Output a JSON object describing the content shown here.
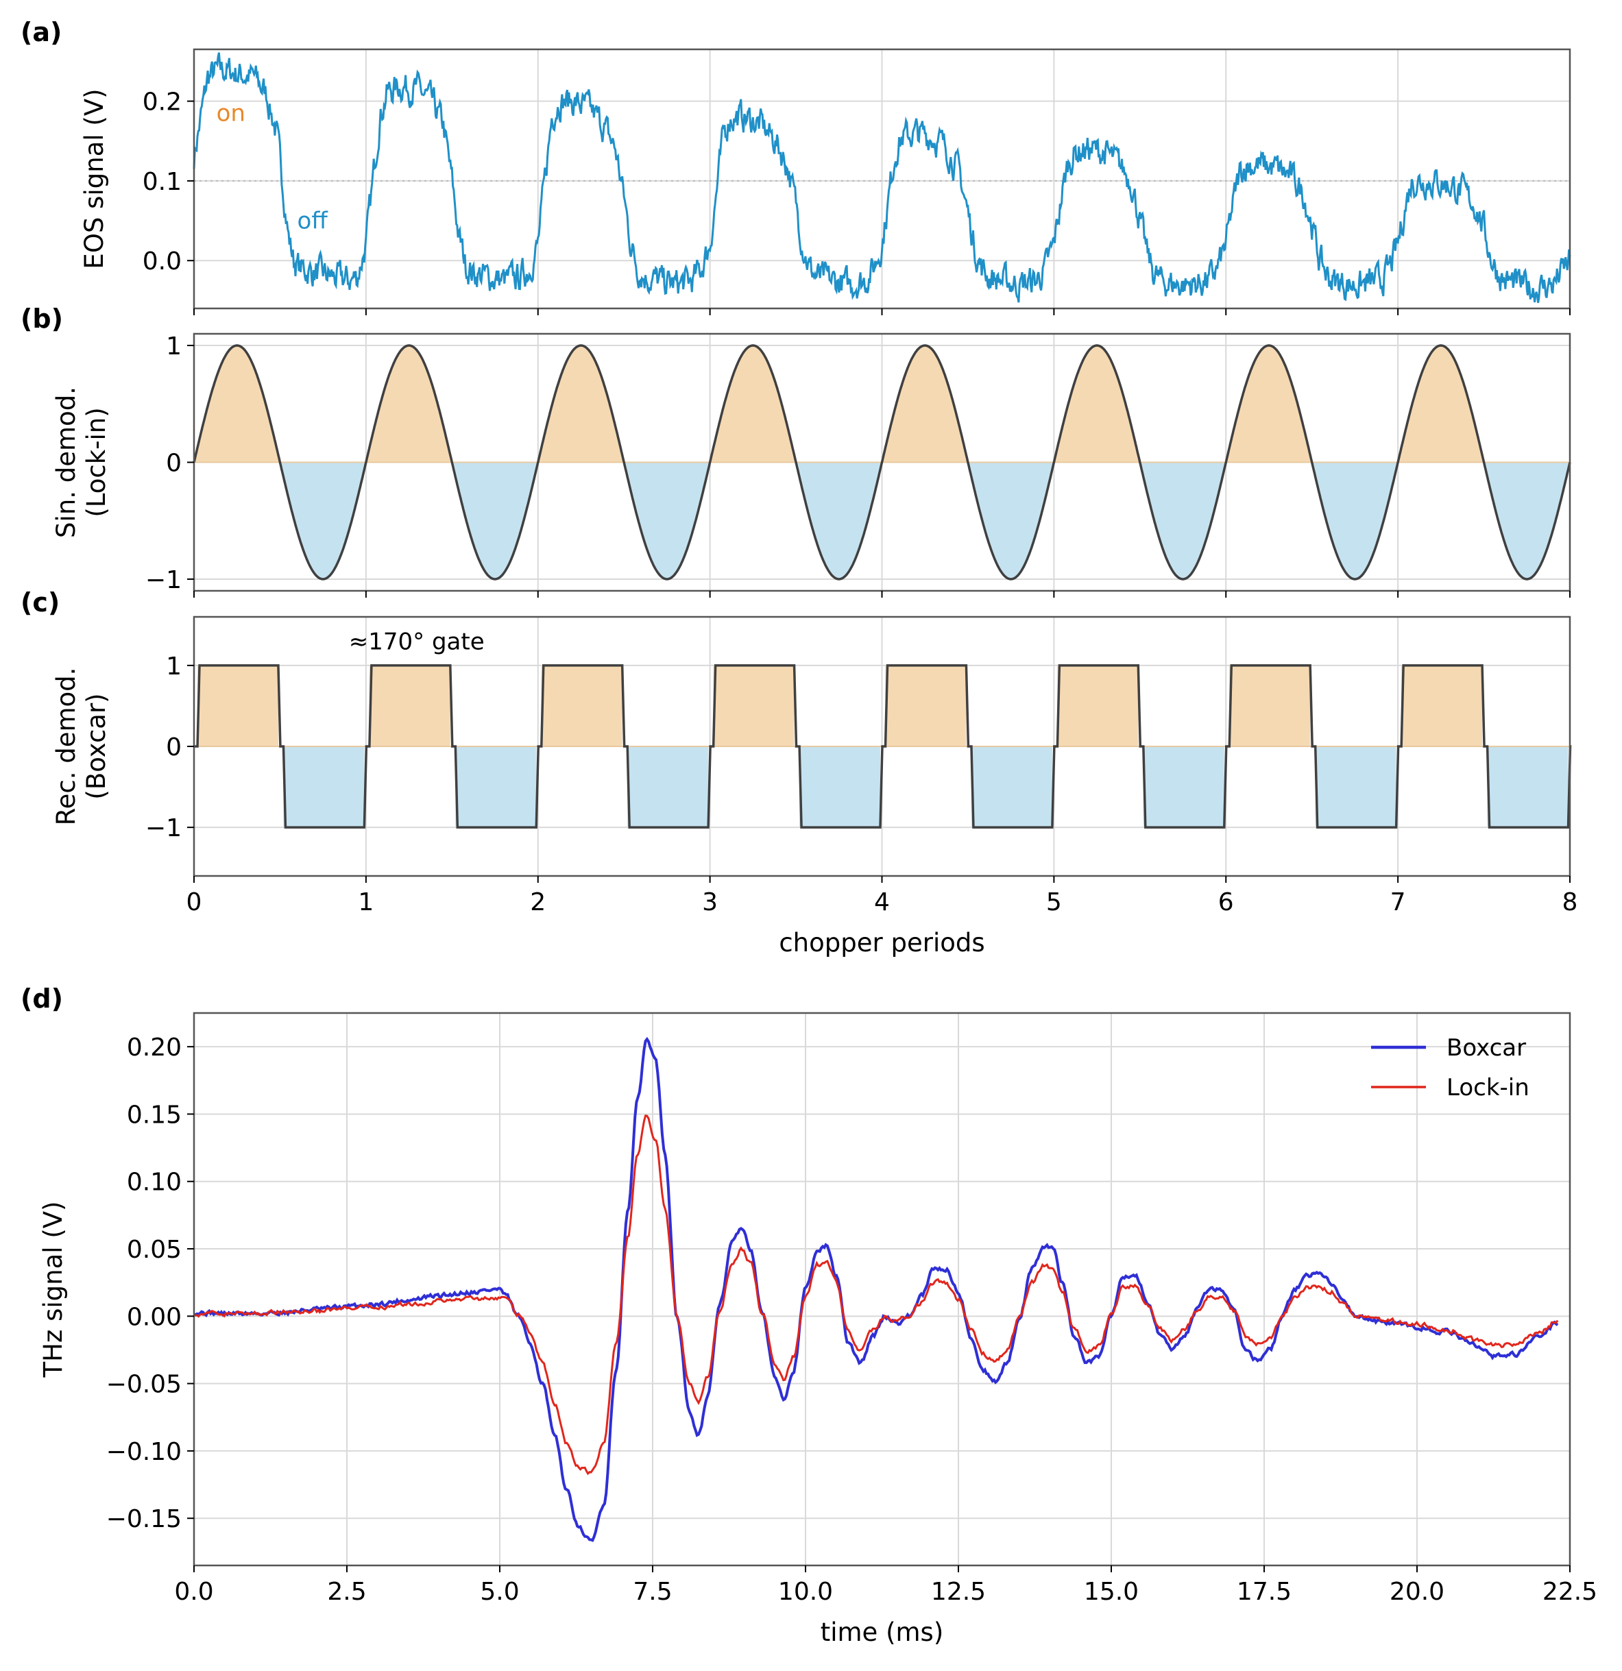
{
  "colors": {
    "eos": "#1f90c8",
    "on_fill": "#f5d9b3",
    "on_text": "#e8892b",
    "off_fill": "#c5e2f0",
    "demod_line": "#404040",
    "boxcar": "#2f2fd6",
    "lockin": "#e1261c",
    "grid": "#d9d9d9",
    "axis": "#555555"
  },
  "chart_data": [
    {
      "id": "a",
      "panel_label": "(a)",
      "type": "line",
      "ylabel": "EOS signal (V)",
      "xlim": [
        0,
        8
      ],
      "ylim": [
        -0.06,
        0.265
      ],
      "xticks": [
        0,
        1,
        2,
        3,
        4,
        5,
        6,
        7,
        8
      ],
      "yticks": [
        0.0,
        0.1,
        0.2
      ],
      "ytick_labels": [
        "0.0",
        "0.1",
        "0.2"
      ],
      "reference_line": 0.1,
      "annotations": [
        {
          "text": "on",
          "x": 0.13,
          "y": 0.175,
          "color": "on_text"
        },
        {
          "text": "off",
          "x": 0.6,
          "y": 0.04,
          "color": "eos"
        }
      ],
      "grid": true,
      "series": [
        {
          "x": [
            0,
            0.04,
            0.08,
            0.15,
            0.25,
            0.35,
            0.42,
            0.48,
            0.52,
            0.55,
            0.58,
            0.62,
            0.7,
            0.8,
            0.9,
            0.95,
            1.0,
            1.04,
            1.08,
            1.12,
            1.2,
            1.3,
            1.38,
            1.45,
            1.5,
            1.54,
            1.58,
            1.62,
            1.7,
            1.8,
            1.9,
            1.95,
            2.0,
            2.04,
            2.08,
            2.12,
            2.2,
            2.3,
            2.38,
            2.45,
            2.5,
            2.54,
            2.58,
            2.62,
            2.7,
            2.8,
            2.9,
            2.95,
            3.0,
            3.04,
            3.08,
            3.12,
            3.2,
            3.3,
            3.38,
            3.45,
            3.5,
            3.54,
            3.58,
            3.62,
            3.7,
            3.8,
            3.9,
            3.95,
            4.0,
            4.04,
            4.08,
            4.12,
            4.2,
            4.3,
            4.38,
            4.45,
            4.5,
            4.54,
            4.58,
            4.62,
            4.7,
            4.8,
            4.9,
            4.95,
            5.0,
            5.04,
            5.08,
            5.12,
            5.2,
            5.3,
            5.38,
            5.45,
            5.5,
            5.54,
            5.58,
            5.62,
            5.7,
            5.8,
            5.9,
            5.95,
            6.0,
            6.04,
            6.08,
            6.12,
            6.2,
            6.3,
            6.38,
            6.45,
            6.5,
            6.54,
            6.58,
            6.62,
            6.7,
            6.8,
            6.9,
            6.95,
            7.0,
            7.04,
            7.08,
            7.12,
            7.2,
            7.3,
            7.38,
            7.45,
            7.5,
            7.54,
            7.58,
            7.62,
            7.7,
            7.8,
            7.9,
            7.95,
            8.0
          ],
          "y": [
            0.13,
            0.18,
            0.23,
            0.24,
            0.235,
            0.23,
            0.21,
            0.16,
            0.09,
            0.03,
            0.0,
            -0.01,
            -0.015,
            -0.02,
            -0.025,
            -0.02,
            0.02,
            0.1,
            0.18,
            0.21,
            0.22,
            0.215,
            0.2,
            0.17,
            0.1,
            0.03,
            -0.005,
            -0.015,
            -0.02,
            -0.025,
            -0.02,
            -0.01,
            0.02,
            0.1,
            0.18,
            0.2,
            0.2,
            0.19,
            0.17,
            0.14,
            0.08,
            0.02,
            -0.01,
            -0.02,
            -0.025,
            -0.03,
            -0.025,
            -0.01,
            0.02,
            0.09,
            0.16,
            0.18,
            0.18,
            0.17,
            0.15,
            0.12,
            0.07,
            0.02,
            -0.01,
            -0.02,
            -0.025,
            -0.03,
            -0.025,
            -0.01,
            0.02,
            0.08,
            0.14,
            0.155,
            0.16,
            0.155,
            0.14,
            0.11,
            0.06,
            0.015,
            -0.01,
            -0.02,
            -0.025,
            -0.03,
            -0.025,
            -0.01,
            0.02,
            0.075,
            0.12,
            0.135,
            0.14,
            0.135,
            0.12,
            0.1,
            0.05,
            0.01,
            -0.015,
            -0.025,
            -0.03,
            -0.03,
            -0.025,
            -0.01,
            0.02,
            0.07,
            0.11,
            0.12,
            0.12,
            0.115,
            0.105,
            0.085,
            0.045,
            0.005,
            -0.015,
            -0.025,
            -0.03,
            -0.03,
            -0.025,
            -0.01,
            0.02,
            0.065,
            0.1,
            0.1,
            0.1,
            0.095,
            0.085,
            0.07,
            0.04,
            0.005,
            -0.015,
            -0.025,
            -0.03,
            -0.035,
            -0.03,
            -0.015,
            0.0
          ]
        }
      ]
    },
    {
      "id": "b",
      "panel_label": "(b)",
      "type": "area",
      "ylabel": [
        "Sin. demod.",
        "(Lock-in)"
      ],
      "xlim": [
        0,
        8
      ],
      "ylim": [
        -1.1,
        1.1
      ],
      "xticks": [
        0,
        1,
        2,
        3,
        4,
        5,
        6,
        7,
        8
      ],
      "yticks": [
        -1,
        0,
        1
      ],
      "ytick_labels": [
        "−1",
        "0",
        "1"
      ],
      "grid": true,
      "function": "sin(2*pi*x)",
      "x_range": [
        0,
        8
      ]
    },
    {
      "id": "c",
      "panel_label": "(c)",
      "type": "area",
      "ylabel": [
        "Rec. demod.",
        "(Boxcar)"
      ],
      "xlabel": "chopper periods",
      "xlim": [
        0,
        8
      ],
      "ylim": [
        -1.6,
        1.6
      ],
      "xticks": [
        0,
        1,
        2,
        3,
        4,
        5,
        6,
        7,
        8
      ],
      "xtick_labels": [
        "0",
        "1",
        "2",
        "3",
        "4",
        "5",
        "6",
        "7",
        "8"
      ],
      "yticks": [
        -1,
        0,
        1
      ],
      "ytick_labels": [
        "−1",
        "0",
        "1"
      ],
      "grid": true,
      "annotation": {
        "text": "≈170° gate",
        "x": 0.9,
        "y": 1.3
      },
      "gate_on": [
        0.02,
        0.49
      ],
      "gate_off": [
        0.52,
        0.99
      ],
      "periods": 8
    },
    {
      "id": "d",
      "panel_label": "(d)",
      "type": "line",
      "ylabel": "THz signal (V)",
      "xlabel": "time (ms)",
      "xlim": [
        0,
        22.5
      ],
      "ylim": [
        -0.185,
        0.225
      ],
      "xticks": [
        0,
        2.5,
        5,
        7.5,
        10,
        12.5,
        15,
        17.5,
        20,
        22.5
      ],
      "xtick_labels": [
        "0.0",
        "2.5",
        "5.0",
        "7.5",
        "10.0",
        "12.5",
        "15.0",
        "17.5",
        "20.0",
        "22.5"
      ],
      "yticks": [
        -0.15,
        -0.1,
        -0.05,
        0,
        0.05,
        0.1,
        0.15,
        0.2
      ],
      "ytick_labels": [
        "−0.15",
        "−0.10",
        "−0.05",
        "0.00",
        "0.05",
        "0.10",
        "0.15",
        "0.20"
      ],
      "grid": true,
      "legend": "top-right",
      "series": [
        {
          "name": "Boxcar",
          "color": "boxcar",
          "x": [
            0,
            0.5,
            1,
            1.5,
            2,
            2.5,
            3,
            3.5,
            4,
            4.5,
            5,
            5.1,
            5.3,
            5.5,
            5.7,
            5.9,
            6.1,
            6.3,
            6.5,
            6.7,
            6.9,
            7.1,
            7.25,
            7.4,
            7.55,
            7.7,
            7.9,
            8.1,
            8.25,
            8.4,
            8.6,
            8.8,
            8.95,
            9.1,
            9.3,
            9.5,
            9.65,
            9.8,
            10.0,
            10.2,
            10.35,
            10.5,
            10.7,
            10.9,
            11.1,
            11.3,
            11.5,
            11.7,
            11.9,
            12.1,
            12.3,
            12.5,
            12.7,
            12.9,
            13.1,
            13.3,
            13.5,
            13.7,
            13.9,
            14.05,
            14.2,
            14.4,
            14.6,
            14.8,
            15.0,
            15.2,
            15.4,
            15.6,
            15.8,
            16.0,
            16.2,
            16.4,
            16.6,
            16.8,
            17.0,
            17.2,
            17.4,
            17.6,
            17.8,
            18.0,
            18.2,
            18.4,
            18.6,
            18.8,
            19.0,
            19.5,
            20.0,
            20.5,
            21.0,
            21.3,
            21.6,
            22.0,
            22.3
          ],
          "y": [
            0.003,
            0.002,
            0.002,
            0.003,
            0.005,
            0.007,
            0.009,
            0.012,
            0.015,
            0.018,
            0.02,
            0.015,
            0.0,
            -0.02,
            -0.05,
            -0.09,
            -0.13,
            -0.158,
            -0.168,
            -0.14,
            -0.04,
            0.08,
            0.16,
            0.205,
            0.19,
            0.12,
            0.0,
            -0.07,
            -0.088,
            -0.06,
            0.01,
            0.055,
            0.065,
            0.05,
            0.0,
            -0.045,
            -0.06,
            -0.04,
            0.02,
            0.05,
            0.052,
            0.03,
            -0.02,
            -0.035,
            -0.015,
            0.0,
            -0.005,
            0.0,
            0.015,
            0.035,
            0.035,
            0.018,
            -0.015,
            -0.04,
            -0.048,
            -0.035,
            0.0,
            0.035,
            0.052,
            0.05,
            0.025,
            -0.015,
            -0.035,
            -0.03,
            0.0,
            0.03,
            0.03,
            0.01,
            -0.015,
            -0.025,
            -0.015,
            0.005,
            0.02,
            0.02,
            0.005,
            -0.025,
            -0.033,
            -0.025,
            0.0,
            0.02,
            0.03,
            0.033,
            0.025,
            0.01,
            0.0,
            -0.005,
            -0.008,
            -0.012,
            -0.022,
            -0.03,
            -0.028,
            -0.015,
            -0.005
          ]
        },
        {
          "name": "Lock-in",
          "color": "lockin",
          "x": [
            0,
            0.5,
            1,
            1.5,
            2,
            2.5,
            3,
            3.5,
            4,
            4.5,
            5,
            5.1,
            5.3,
            5.5,
            5.7,
            5.9,
            6.1,
            6.3,
            6.5,
            6.7,
            6.9,
            7.1,
            7.25,
            7.4,
            7.55,
            7.7,
            7.9,
            8.1,
            8.25,
            8.4,
            8.6,
            8.8,
            8.95,
            9.1,
            9.3,
            9.5,
            9.65,
            9.8,
            10.0,
            10.2,
            10.35,
            10.5,
            10.7,
            10.9,
            11.1,
            11.3,
            11.5,
            11.7,
            11.9,
            12.1,
            12.3,
            12.5,
            12.7,
            12.9,
            13.1,
            13.3,
            13.5,
            13.7,
            13.9,
            14.05,
            14.2,
            14.4,
            14.6,
            14.8,
            15.0,
            15.2,
            15.4,
            15.6,
            15.8,
            16.0,
            16.2,
            16.4,
            16.6,
            16.8,
            17.0,
            17.2,
            17.4,
            17.6,
            17.8,
            18.0,
            18.2,
            18.4,
            18.6,
            18.8,
            19.0,
            19.5,
            20.0,
            20.5,
            21.0,
            21.3,
            21.6,
            22.0,
            22.3
          ],
          "y": [
            0.002,
            0.002,
            0.002,
            0.003,
            0.004,
            0.005,
            0.007,
            0.009,
            0.011,
            0.013,
            0.014,
            0.012,
            0.002,
            -0.012,
            -0.035,
            -0.065,
            -0.095,
            -0.112,
            -0.116,
            -0.095,
            -0.02,
            0.06,
            0.12,
            0.15,
            0.13,
            0.08,
            0.0,
            -0.05,
            -0.065,
            -0.045,
            0.005,
            0.04,
            0.05,
            0.04,
            0.0,
            -0.035,
            -0.048,
            -0.03,
            0.015,
            0.038,
            0.04,
            0.025,
            -0.012,
            -0.025,
            -0.01,
            0.0,
            -0.003,
            0.0,
            0.01,
            0.025,
            0.025,
            0.012,
            -0.01,
            -0.028,
            -0.034,
            -0.025,
            0.0,
            0.025,
            0.037,
            0.036,
            0.018,
            -0.01,
            -0.025,
            -0.022,
            0.0,
            0.022,
            0.022,
            0.008,
            -0.01,
            -0.018,
            -0.01,
            0.004,
            0.015,
            0.015,
            0.004,
            -0.015,
            -0.02,
            -0.015,
            0.0,
            0.015,
            0.022,
            0.022,
            0.018,
            0.008,
            0.0,
            -0.003,
            -0.006,
            -0.01,
            -0.018,
            -0.022,
            -0.02,
            -0.012,
            -0.003
          ]
        }
      ]
    }
  ]
}
